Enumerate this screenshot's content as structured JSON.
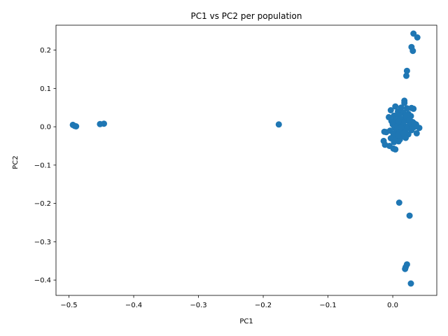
{
  "chart_data": {
    "type": "scatter",
    "title": "PC1 vs PC2 per population",
    "xlabel": "PC1",
    "ylabel": "PC2",
    "xlim": [
      -0.52,
      0.068
    ],
    "ylim": [
      -0.44,
      0.265
    ],
    "grid": false,
    "marker_color": "#1f77b4",
    "xticks": [
      {
        "value": -0.5,
        "label": "−0.5"
      },
      {
        "value": -0.4,
        "label": "−0.4"
      },
      {
        "value": -0.3,
        "label": "−0.3"
      },
      {
        "value": -0.2,
        "label": "−0.2"
      },
      {
        "value": -0.1,
        "label": "−0.1"
      },
      {
        "value": 0.0,
        "label": "0.0"
      }
    ],
    "yticks": [
      {
        "value": -0.4,
        "label": "−0.4"
      },
      {
        "value": -0.3,
        "label": "−0.3"
      },
      {
        "value": -0.2,
        "label": "−0.2"
      },
      {
        "value": -0.1,
        "label": "−0.1"
      },
      {
        "value": 0.0,
        "label": "0.0"
      },
      {
        "value": 0.1,
        "label": "0.1"
      },
      {
        "value": 0.2,
        "label": "0.2"
      }
    ],
    "points": [
      {
        "x": -0.494,
        "y": 0.005
      },
      {
        "x": -0.491,
        "y": 0.002
      },
      {
        "x": -0.489,
        "y": 0.001
      },
      {
        "x": -0.452,
        "y": 0.007
      },
      {
        "x": -0.446,
        "y": 0.008
      },
      {
        "x": -0.176,
        "y": 0.006
      },
      {
        "x": 0.032,
        "y": 0.243
      },
      {
        "x": 0.038,
        "y": 0.233
      },
      {
        "x": 0.029,
        "y": 0.208
      },
      {
        "x": 0.031,
        "y": 0.198
      },
      {
        "x": 0.022,
        "y": 0.146
      },
      {
        "x": 0.021,
        "y": 0.133
      },
      {
        "x": 0.018,
        "y": 0.068
      },
      {
        "x": 0.018,
        "y": 0.062
      },
      {
        "x": 0.004,
        "y": 0.053
      },
      {
        "x": 0.013,
        "y": 0.05
      },
      {
        "x": 0.022,
        "y": 0.048
      },
      {
        "x": 0.032,
        "y": 0.047
      },
      {
        "x": 0.029,
        "y": 0.049
      },
      {
        "x": -0.003,
        "y": 0.043
      },
      {
        "x": 0.008,
        "y": 0.04
      },
      {
        "x": 0.016,
        "y": 0.037
      },
      {
        "x": 0.024,
        "y": 0.034
      },
      {
        "x": 0.01,
        "y": 0.03
      },
      {
        "x": 0.002,
        "y": 0.029
      },
      {
        "x": -0.006,
        "y": 0.025
      },
      {
        "x": 0.028,
        "y": 0.028
      },
      {
        "x": 0.019,
        "y": 0.025
      },
      {
        "x": 0.012,
        "y": 0.021
      },
      {
        "x": 0.004,
        "y": 0.018
      },
      {
        "x": -0.002,
        "y": 0.015
      },
      {
        "x": 0.023,
        "y": 0.016
      },
      {
        "x": 0.031,
        "y": 0.012
      },
      {
        "x": 0.015,
        "y": 0.01
      },
      {
        "x": 0.007,
        "y": 0.008
      },
      {
        "x": 0.0,
        "y": 0.006
      },
      {
        "x": 0.036,
        "y": 0.006
      },
      {
        "x": 0.026,
        "y": 0.004
      },
      {
        "x": 0.018,
        "y": 0.002
      },
      {
        "x": 0.011,
        "y": 0.0
      },
      {
        "x": 0.003,
        "y": -0.002
      },
      {
        "x": 0.041,
        "y": -0.003
      },
      {
        "x": 0.033,
        "y": -0.001
      },
      {
        "x": 0.022,
        "y": -0.004
      },
      {
        "x": 0.014,
        "y": -0.006
      },
      {
        "x": 0.006,
        "y": -0.008
      },
      {
        "x": -0.004,
        "y": -0.01
      },
      {
        "x": -0.01,
        "y": -0.014
      },
      {
        "x": -0.013,
        "y": -0.013
      },
      {
        "x": 0.029,
        "y": -0.009
      },
      {
        "x": 0.019,
        "y": -0.012
      },
      {
        "x": 0.01,
        "y": -0.015
      },
      {
        "x": 0.001,
        "y": -0.018
      },
      {
        "x": 0.037,
        "y": -0.017
      },
      {
        "x": 0.024,
        "y": -0.02
      },
      {
        "x": 0.015,
        "y": -0.023
      },
      {
        "x": 0.005,
        "y": -0.026
      },
      {
        "x": -0.003,
        "y": -0.03
      },
      {
        "x": 0.02,
        "y": -0.029
      },
      {
        "x": 0.011,
        "y": -0.033
      },
      {
        "x": -0.014,
        "y": -0.037
      },
      {
        "x": 0.002,
        "y": -0.04
      },
      {
        "x": -0.012,
        "y": -0.047
      },
      {
        "x": -0.005,
        "y": -0.05
      },
      {
        "x": 0.001,
        "y": -0.057
      },
      {
        "x": 0.004,
        "y": -0.059
      },
      {
        "x": 0.009,
        "y": -0.038
      },
      {
        "x": 0.016,
        "y": 0.012
      },
      {
        "x": 0.021,
        "y": 0.03
      },
      {
        "x": 0.013,
        "y": -0.002
      },
      {
        "x": 0.009,
        "y": 0.014
      },
      {
        "x": 0.026,
        "y": 0.018
      },
      {
        "x": 0.017,
        "y": -0.017
      },
      {
        "x": 0.008,
        "y": -0.022
      },
      {
        "x": 0.033,
        "y": 0.009
      },
      {
        "x": 0.01,
        "y": -0.198
      },
      {
        "x": 0.026,
        "y": -0.232
      },
      {
        "x": 0.022,
        "y": -0.359
      },
      {
        "x": 0.02,
        "y": -0.366
      },
      {
        "x": 0.019,
        "y": -0.371
      },
      {
        "x": 0.028,
        "y": -0.409
      }
    ]
  }
}
